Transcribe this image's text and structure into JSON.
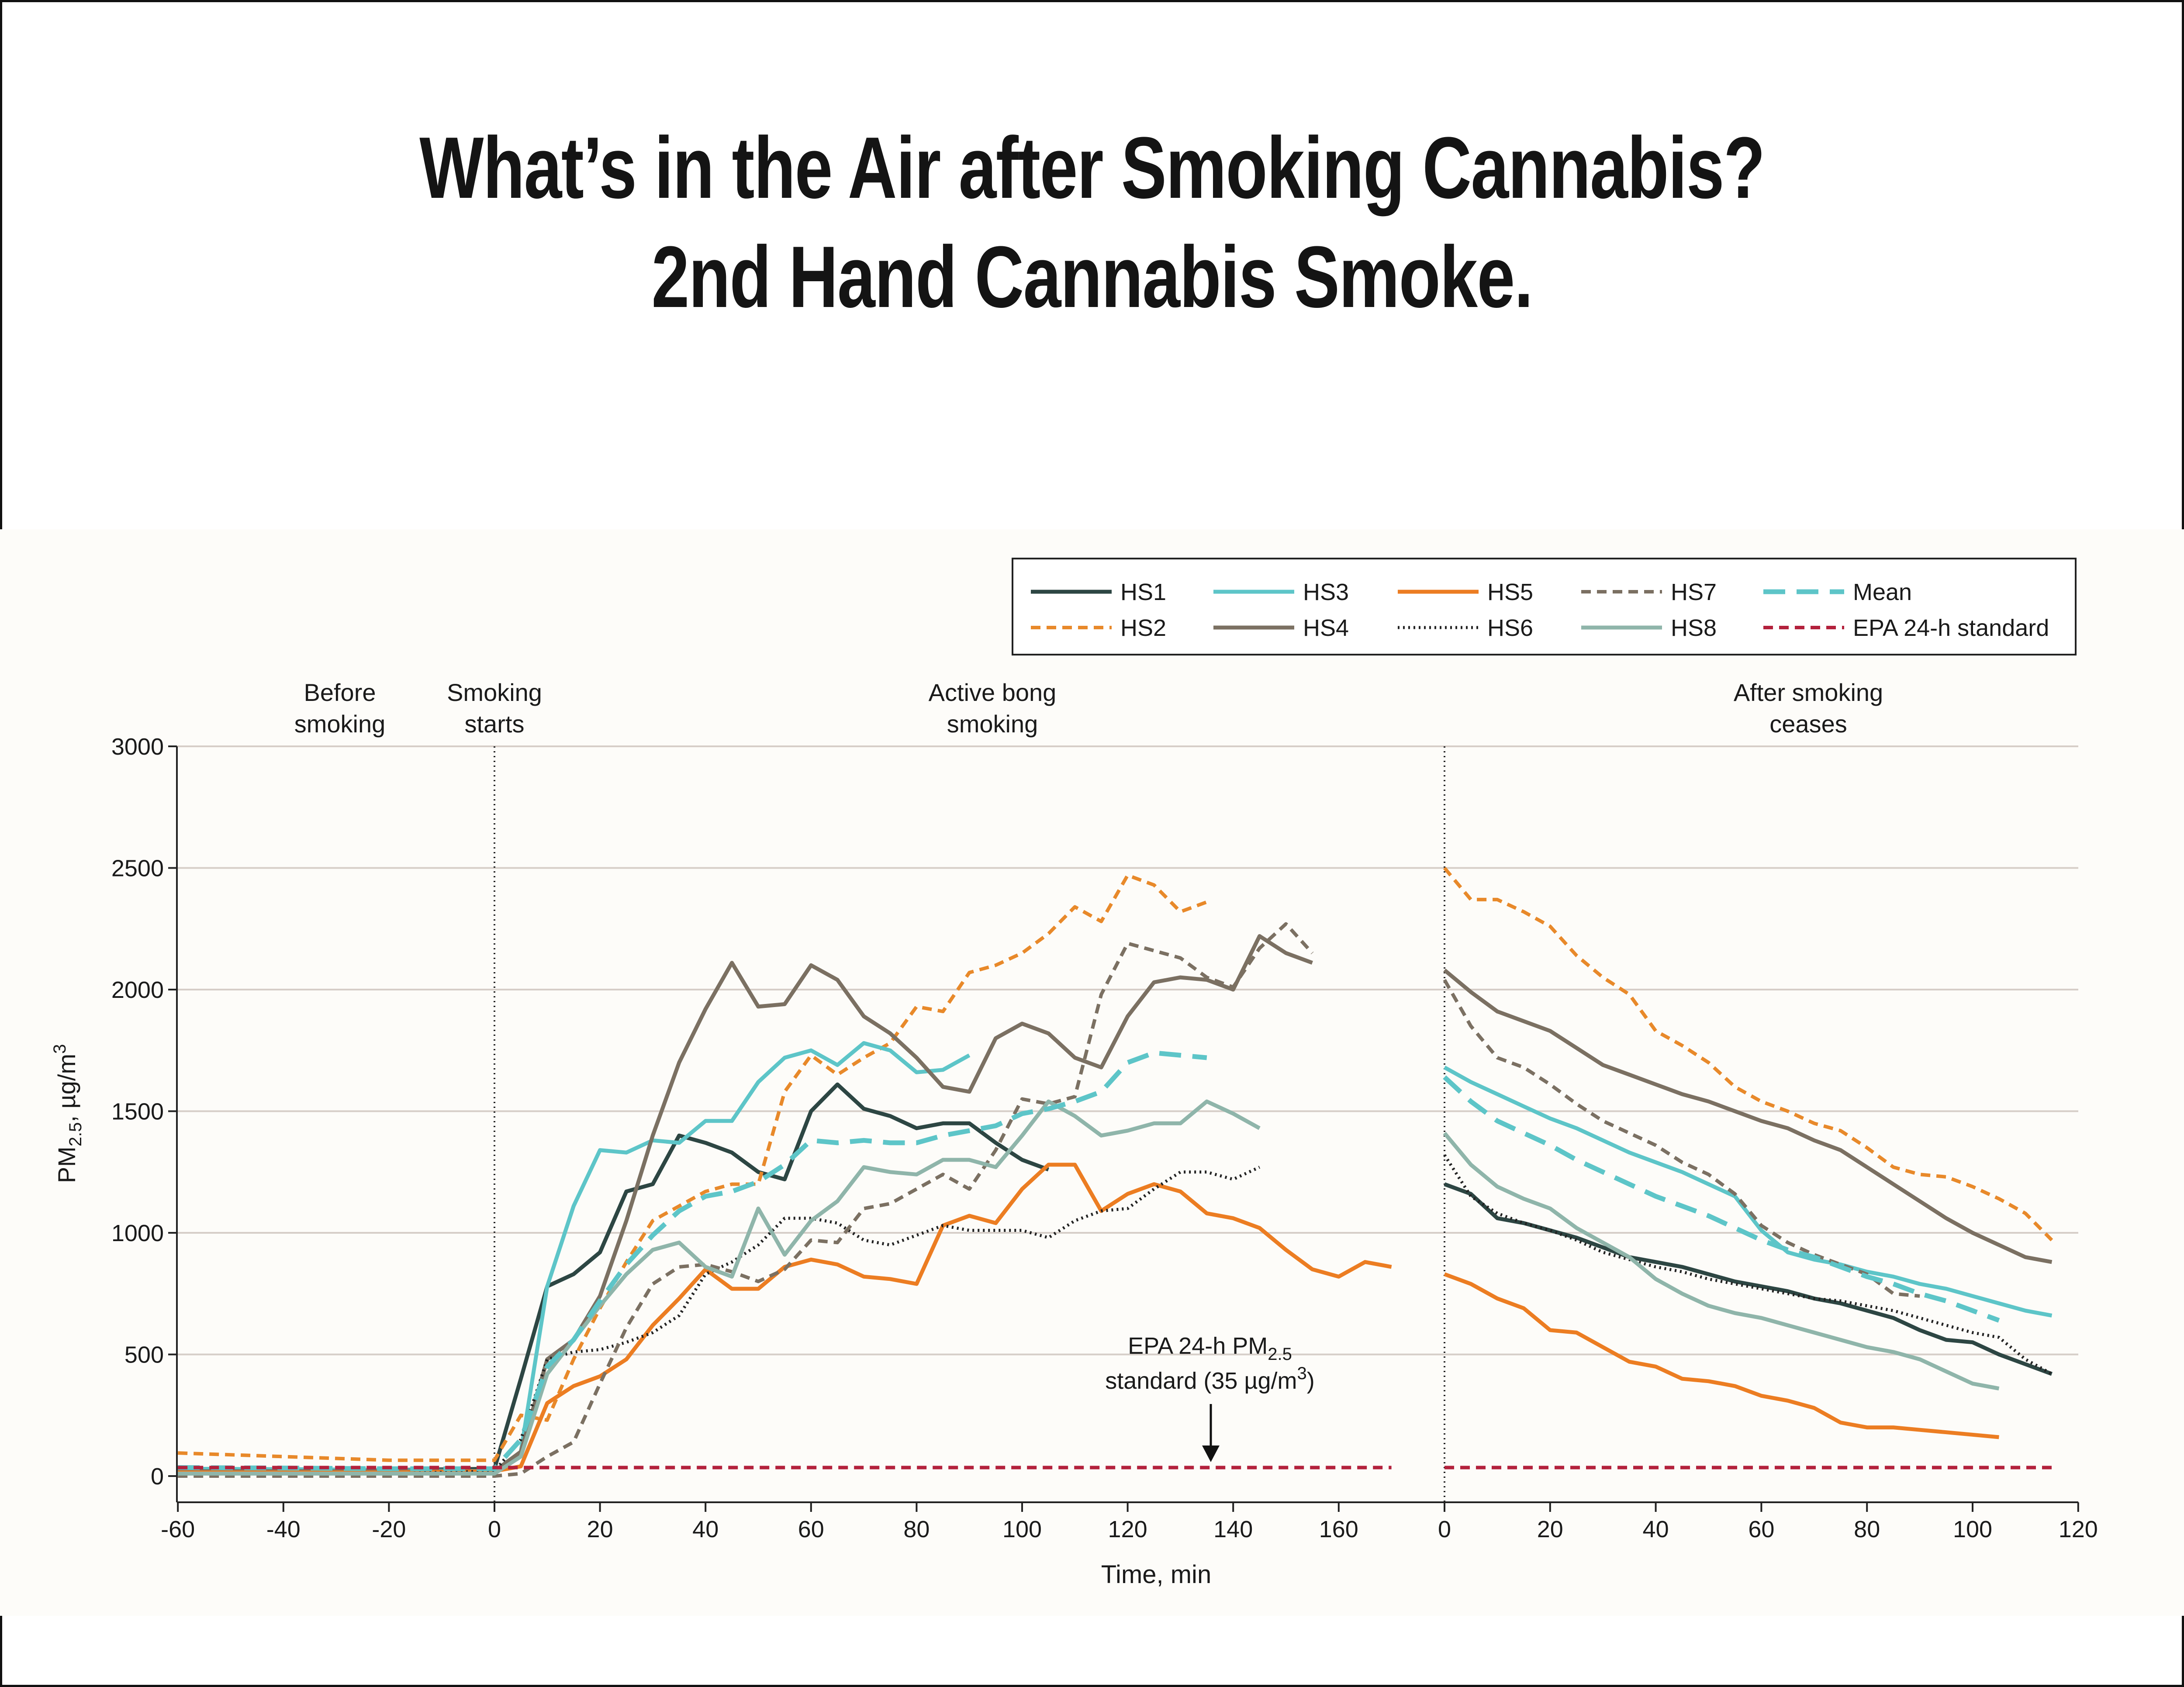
{
  "title": {
    "line1": "What’s in the Air after Smoking Cannabis?",
    "line2": "2nd Hand Cannabis Smoke."
  },
  "chart_data": {
    "type": "line",
    "ylabel": {
      "main": "PM",
      "sub": "2.5",
      "unit": ", µg/m",
      "sup": "3"
    },
    "xlabel": "Time, min",
    "ylim": [
      0,
      3000
    ],
    "yticks": [
      0,
      500,
      1000,
      1500,
      2000,
      2500,
      3000
    ],
    "grid": true,
    "legend_position": "top-right",
    "phase_labels": [
      {
        "line1": "Before",
        "line2": "smoking"
      },
      {
        "line1": "Smoking",
        "line2": "starts"
      },
      {
        "line1": "Active bong",
        "line2": "smoking"
      },
      {
        "line1": "After smoking",
        "line2": "ceases"
      }
    ],
    "annotation": {
      "line1": "EPA 24-h PM",
      "sub": "2.5",
      "line2": "standard (35 µg/m",
      "sup": "3",
      "close": ")",
      "value": 35
    },
    "panels": [
      {
        "xlim": [
          -60,
          170
        ],
        "xticks": [
          -60,
          -40,
          -20,
          0,
          20,
          40,
          60,
          80,
          100,
          120,
          140,
          160
        ],
        "x": [
          -60,
          -40,
          -20,
          0,
          5,
          10,
          15,
          20,
          25,
          30,
          35,
          40,
          45,
          50,
          55,
          60,
          65,
          70,
          75,
          80,
          85,
          90,
          95,
          100,
          105,
          110,
          115,
          120,
          125,
          130,
          135,
          140,
          145,
          150,
          155,
          160,
          165,
          170
        ],
        "series": {
          "HS1": [
            30,
            28,
            25,
            30,
            400,
            780,
            830,
            920,
            1170,
            1200,
            1400,
            1370,
            1330,
            1250,
            1220,
            1500,
            1610,
            1510,
            1480,
            1430,
            1450,
            1450,
            1370,
            1300,
            1260
          ],
          "HS2": [
            95,
            80,
            65,
            65,
            250,
            230,
            480,
            690,
            880,
            1050,
            1110,
            1170,
            1200,
            1200,
            1580,
            1730,
            1650,
            1720,
            1780,
            1930,
            1910,
            2070,
            2100,
            2150,
            2230,
            2340,
            2280,
            2470,
            2430,
            2320,
            2360
          ],
          "HS3": [
            30,
            28,
            25,
            20,
            100,
            780,
            1110,
            1340,
            1330,
            1380,
            1370,
            1460,
            1460,
            1620,
            1720,
            1750,
            1690,
            1780,
            1750,
            1660,
            1670,
            1730
          ],
          "HS4": [
            20,
            20,
            20,
            20,
            100,
            480,
            560,
            740,
            1050,
            1400,
            1700,
            1920,
            2110,
            1930,
            1940,
            2100,
            2040,
            1890,
            1820,
            1720,
            1600,
            1580,
            1800,
            1860,
            1820,
            1720,
            1680,
            1890,
            2030,
            2050,
            2040,
            2000,
            2220,
            2150,
            2110
          ],
          "HS5": [
            15,
            15,
            15,
            20,
            40,
            300,
            370,
            410,
            480,
            620,
            730,
            850,
            770,
            770,
            860,
            890,
            870,
            820,
            810,
            790,
            1030,
            1070,
            1040,
            1180,
            1280,
            1280,
            1090,
            1160,
            1200,
            1170,
            1080,
            1060,
            1020,
            930,
            850,
            820,
            880,
            860
          ],
          "HS6": [
            10,
            10,
            10,
            20,
            150,
            480,
            510,
            520,
            550,
            590,
            660,
            830,
            880,
            950,
            1060,
            1060,
            1040,
            970,
            950,
            990,
            1030,
            1010,
            1010,
            1010,
            980,
            1050,
            1090,
            1100,
            1180,
            1250,
            1250,
            1220,
            1270
          ],
          "HS7": [
            0,
            0,
            0,
            0,
            10,
            80,
            140,
            380,
            610,
            790,
            860,
            870,
            840,
            800,
            850,
            970,
            960,
            1100,
            1120,
            1180,
            1240,
            1180,
            1340,
            1550,
            1530,
            1560,
            1980,
            2190,
            2160,
            2130,
            2050,
            2010,
            2170,
            2270,
            2150
          ],
          "HS8": [
            10,
            10,
            10,
            10,
            80,
            420,
            560,
            700,
            830,
            930,
            960,
            860,
            820,
            1100,
            910,
            1050,
            1130,
            1270,
            1250,
            1240,
            1300,
            1300,
            1270,
            1400,
            1540,
            1480,
            1400,
            1420,
            1450,
            1450,
            1540,
            1490,
            1430
          ],
          "Mean": [
            35,
            33,
            30,
            30,
            150,
            450,
            560,
            720,
            870,
            990,
            1090,
            1150,
            1170,
            1210,
            1280,
            1380,
            1370,
            1380,
            1370,
            1370,
            1400,
            1420,
            1440,
            1490,
            1510,
            1540,
            1580,
            1700,
            1740,
            1730,
            1720
          ],
          "EPA 24-h standard": [
            35,
            35,
            35,
            35,
            35,
            35,
            35,
            35,
            35,
            35,
            35,
            35,
            35,
            35,
            35,
            35,
            35,
            35,
            35,
            35,
            35,
            35,
            35,
            35,
            35,
            35,
            35,
            35,
            35,
            35,
            35,
            35,
            35,
            35,
            35,
            35,
            35,
            35
          ]
        }
      },
      {
        "xlim": [
          0,
          120
        ],
        "xticks": [
          0,
          20,
          40,
          60,
          80,
          100,
          120
        ],
        "x": [
          0,
          5,
          10,
          15,
          20,
          25,
          30,
          35,
          40,
          45,
          50,
          55,
          60,
          65,
          70,
          75,
          80,
          85,
          90,
          95,
          100,
          105,
          110,
          115
        ],
        "series": {
          "HS1": [
            1200,
            1160,
            1060,
            1040,
            1010,
            980,
            940,
            900,
            880,
            860,
            830,
            800,
            780,
            760,
            730,
            710,
            680,
            650,
            600,
            560,
            550,
            500,
            460,
            420
          ],
          "HS2": [
            2500,
            2370,
            2370,
            2320,
            2260,
            2140,
            2050,
            1980,
            1830,
            1770,
            1700,
            1600,
            1540,
            1500,
            1450,
            1420,
            1350,
            1270,
            1240,
            1230,
            1190,
            1140,
            1080,
            970
          ],
          "HS3": [
            1680,
            1620,
            1570,
            1520,
            1470,
            1430,
            1380,
            1330,
            1290,
            1250,
            1200,
            1150,
            1010,
            920,
            890,
            870,
            840,
            820,
            790,
            770,
            740,
            710,
            680,
            660
          ],
          "HS4": [
            2080,
            1990,
            1910,
            1870,
            1830,
            1760,
            1690,
            1650,
            1610,
            1570,
            1540,
            1500,
            1460,
            1430,
            1380,
            1340,
            1270,
            1200,
            1130,
            1060,
            1000,
            950,
            900,
            880
          ],
          "HS5": [
            830,
            790,
            730,
            690,
            600,
            590,
            530,
            470,
            450,
            400,
            390,
            370,
            330,
            310,
            280,
            220,
            200,
            200,
            190,
            180,
            170,
            160
          ],
          "HS6": [
            1320,
            1150,
            1080,
            1040,
            1010,
            970,
            920,
            890,
            860,
            840,
            810,
            790,
            770,
            750,
            730,
            720,
            700,
            680,
            650,
            620,
            590,
            570,
            480,
            420
          ],
          "HS7": [
            2040,
            1850,
            1720,
            1680,
            1610,
            1530,
            1460,
            1410,
            1360,
            1290,
            1240,
            1160,
            1030,
            960,
            910,
            870,
            830,
            750,
            740
          ],
          "HS8": [
            1410,
            1280,
            1190,
            1140,
            1100,
            1020,
            960,
            900,
            810,
            750,
            700,
            670,
            650,
            620,
            590,
            560,
            530,
            510,
            480,
            430,
            380,
            360
          ],
          "Mean": [
            1640,
            1540,
            1460,
            1410,
            1360,
            1300,
            1250,
            1200,
            1150,
            1110,
            1070,
            1020,
            970,
            930,
            900,
            860,
            820,
            790,
            750,
            720,
            680,
            640
          ],
          "EPA 24-h standard": [
            35,
            35,
            35,
            35,
            35,
            35,
            35,
            35,
            35,
            35,
            35,
            35,
            35,
            35,
            35,
            35,
            35,
            35,
            35,
            35,
            35,
            35,
            35,
            35
          ]
        }
      }
    ],
    "legend": [
      {
        "name": "HS1",
        "color": "#2d4643",
        "style": "solid"
      },
      {
        "name": "HS2",
        "color": "#e8892a",
        "style": "dashed"
      },
      {
        "name": "HS3",
        "color": "#5dc5c8",
        "style": "solid"
      },
      {
        "name": "HS4",
        "color": "#7b7062",
        "style": "solid"
      },
      {
        "name": "HS5",
        "color": "#ec7d22",
        "style": "solid"
      },
      {
        "name": "HS6",
        "color": "#222222",
        "style": "dotted"
      },
      {
        "name": "HS7",
        "color": "#7b7062",
        "style": "dashed"
      },
      {
        "name": "HS8",
        "color": "#8fb5aa",
        "style": "solid"
      },
      {
        "name": "Mean",
        "color": "#5dc5c8",
        "style": "longdash"
      },
      {
        "name": "EPA 24-h standard",
        "color": "#b3213c",
        "style": "dashed"
      }
    ]
  }
}
